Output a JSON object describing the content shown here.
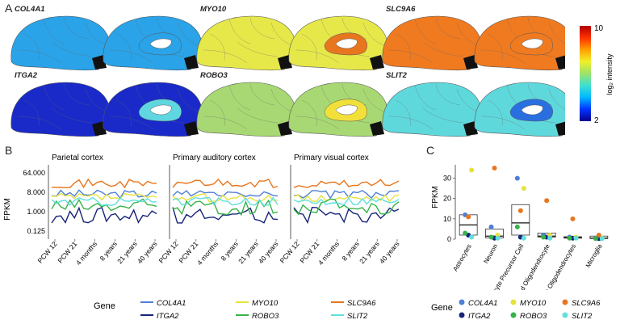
{
  "panels": {
    "a": "A",
    "b": "B",
    "c": "C"
  },
  "colorbar": {
    "title": "log₂ intensity",
    "max": "10",
    "min": "2",
    "stops": [
      "#08008f",
      "#0033ff",
      "#00b8ff",
      "#3fe0d0",
      "#9be36a",
      "#f0f02a",
      "#ffa000",
      "#ff3000",
      "#b30000"
    ]
  },
  "brains": [
    {
      "gene": "COL4A1",
      "lateral": "#2aa3e8",
      "medial": "#2aa3e8",
      "inner": "#2aa3e8"
    },
    {
      "gene": "MYO10",
      "lateral": "#e6e84a",
      "medial": "#e6e84a",
      "inner": "#e8761e"
    },
    {
      "gene": "SLC9A6",
      "lateral": "#f07a20",
      "medial": "#f07a20",
      "inner": "#f07a20"
    },
    {
      "gene": "ITGA2",
      "lateral": "#1a2ac8",
      "medial": "#1a2ac8",
      "inner": "#5fd6e0"
    },
    {
      "gene": "ROBO3",
      "lateral": "#a8d873",
      "medial": "#a8d873",
      "inner": "#f2e03a"
    },
    {
      "gene": "SLIT2",
      "lateral": "#5fd8dc",
      "medial": "#5fd8dc",
      "inner": "#2a6fe0"
    }
  ],
  "chart_data": [
    {
      "type": "line",
      "panel": "B",
      "ylabel": "FPKM",
      "yticks": [
        "64.000",
        "8.000",
        "1.000",
        "0.125"
      ],
      "xticks": [
        "PCW 12",
        "PCW 21",
        "4 months",
        "8 years",
        "21 years",
        "40 years"
      ],
      "scale": "log2",
      "facets": [
        "Parietal cortex",
        "Primary auditory cortex",
        "Primary visual cortex"
      ],
      "approximate_levels_fpkm": {
        "COL4A1": 8,
        "ITGA2": 0.5,
        "MYO10": 5,
        "ROBO3": 1.5,
        "SLC9A6": 32,
        "SLIT2": 3
      }
    },
    {
      "type": "scatter",
      "panel": "C",
      "ylabel": "FPKM",
      "ylim": [
        0,
        35
      ],
      "yticks": [
        "0",
        "10",
        "20",
        "30"
      ],
      "categories": [
        "Astrocytes",
        "Neuron",
        "Oligodendrocyte Precursor Cell",
        "Newly Formed Oligodendrocyte",
        "Myelinating Oligodendrocytes",
        "Microglia"
      ],
      "series": [
        {
          "name": "COL4A1",
          "values": [
            12,
            6,
            30,
            2,
            1,
            0.5
          ]
        },
        {
          "name": "ITGA2",
          "values": [
            2,
            0.5,
            1,
            1,
            0.5,
            0.3
          ]
        },
        {
          "name": "MYO10",
          "values": [
            34,
            2,
            25,
            2,
            1,
            0.5
          ]
        },
        {
          "name": "ROBO3",
          "values": [
            3,
            1,
            6,
            1,
            0.5,
            0.3
          ]
        },
        {
          "name": "SLC9A6",
          "values": [
            11,
            35,
            14,
            19,
            10,
            2
          ]
        },
        {
          "name": "SLIT2",
          "values": [
            1,
            0.5,
            0.5,
            0.5,
            0.5,
            0.3
          ]
        }
      ],
      "boxes": [
        {
          "q1": 2,
          "median": 7,
          "q3": 12
        },
        {
          "q1": 0.6,
          "median": 1.5,
          "q3": 5
        },
        {
          "q1": 2,
          "median": 8,
          "q3": 17
        },
        {
          "q1": 1,
          "median": 1.5,
          "q3": 3
        },
        {
          "q1": 0.5,
          "median": 0.8,
          "q3": 1.2
        },
        {
          "q1": 0.3,
          "median": 0.5,
          "q3": 1.5
        }
      ]
    }
  ],
  "legend": {
    "title": "Gene",
    "items": [
      {
        "gene": "COL4A1",
        "color": "#4f7fd6"
      },
      {
        "gene": "ITGA2",
        "color": "#17247a"
      },
      {
        "gene": "MYO10",
        "color": "#e6e23c"
      },
      {
        "gene": "ROBO3",
        "color": "#38b34a"
      },
      {
        "gene": "SLC9A6",
        "color": "#e8761e"
      },
      {
        "gene": "SLIT2",
        "color": "#5fe0de"
      }
    ]
  }
}
